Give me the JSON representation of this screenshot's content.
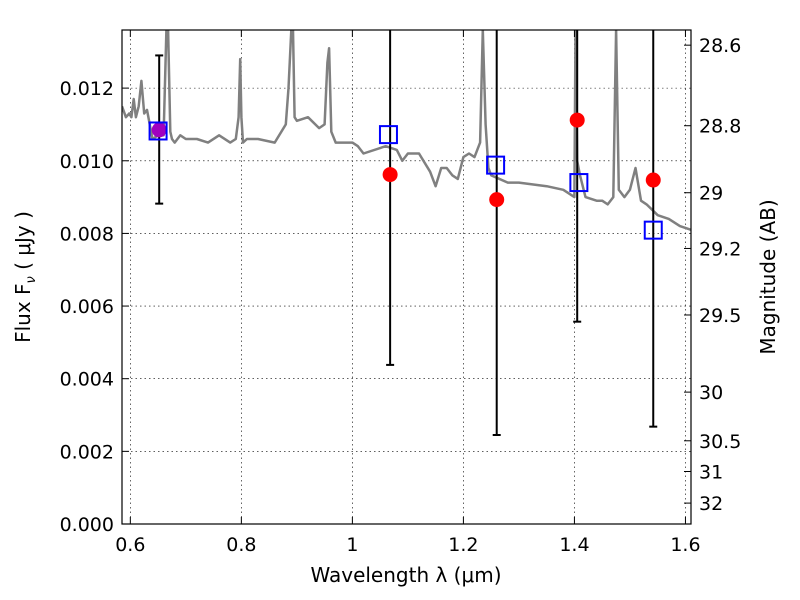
{
  "chart_data": {
    "type": "scatter",
    "title": "",
    "xlabel": "Wavelength  λ (μm)",
    "ylabel": "Flux  F",
    "ylabel_sub": "ν",
    "ylabel_unit": "  ( μJy )",
    "y2label": "Magnitude (AB)",
    "xlim": [
      0.585,
      1.61
    ],
    "ylim": [
      0.0,
      0.0136
    ],
    "grid": true,
    "x_ticks": [
      0.6,
      0.8,
      1.0,
      1.2,
      1.4,
      1.6
    ],
    "x_tick_labels": [
      "0.6",
      "0.8",
      "1",
      "1.2",
      "1.4",
      "1.6"
    ],
    "y_ticks": [
      0.0,
      0.002,
      0.004,
      0.006,
      0.008,
      0.01,
      0.012
    ],
    "y_tick_labels": [
      "0.000",
      "0.002",
      "0.004",
      "0.006",
      "0.008",
      "0.010",
      "0.012"
    ],
    "y2_ticks": [
      28.6,
      28.8,
      29,
      29.2,
      29.5,
      30,
      30.5,
      31,
      32
    ],
    "y2_tick_labels": [
      "28.6",
      "28.8",
      "29",
      "29.2",
      "29.5",
      "30",
      "30.5",
      "31",
      "32"
    ],
    "colors": {
      "spectrum": "#808080",
      "observed": "#ff0000",
      "model": "#0000ff",
      "overlap": "#a000c0",
      "errorbar": "#000000"
    },
    "series": [
      {
        "kind": "spectrum-line",
        "x": [
          0.585,
          0.592,
          0.598,
          0.602,
          0.606,
          0.61,
          0.615,
          0.62,
          0.625,
          0.63,
          0.64,
          0.65,
          0.66,
          0.665,
          0.668,
          0.672,
          0.675,
          0.68,
          0.69,
          0.7,
          0.72,
          0.74,
          0.76,
          0.78,
          0.79,
          0.795,
          0.798,
          0.8,
          0.803,
          0.81,
          0.83,
          0.86,
          0.88,
          0.885,
          0.89,
          0.893,
          0.896,
          0.9,
          0.92,
          0.94,
          0.95,
          0.955,
          0.958,
          0.962,
          0.97,
          0.98,
          1.0,
          1.01,
          1.02,
          1.06,
          1.08,
          1.09,
          1.1,
          1.12,
          1.14,
          1.15,
          1.16,
          1.17,
          1.18,
          1.19,
          1.2,
          1.21,
          1.22,
          1.23,
          1.235,
          1.24,
          1.245,
          1.25,
          1.28,
          1.3,
          1.35,
          1.38,
          1.4,
          1.402,
          1.405,
          1.41,
          1.42,
          1.44,
          1.45,
          1.46,
          1.47,
          1.475,
          1.48,
          1.49,
          1.5,
          1.51,
          1.52,
          1.53,
          1.55,
          1.57,
          1.59,
          1.61
        ],
        "y": [
          0.0115,
          0.0112,
          0.0113,
          0.0112,
          0.0117,
          0.0112,
          0.0115,
          0.0122,
          0.0113,
          0.0114,
          0.0106,
          0.0107,
          0.0107,
          0.0136,
          0.0136,
          0.0108,
          0.0106,
          0.0105,
          0.0107,
          0.0106,
          0.0106,
          0.0105,
          0.0107,
          0.0105,
          0.0106,
          0.0112,
          0.0128,
          0.0112,
          0.0105,
          0.0106,
          0.0106,
          0.0105,
          0.011,
          0.012,
          0.0136,
          0.0136,
          0.0112,
          0.0111,
          0.0112,
          0.0109,
          0.011,
          0.0127,
          0.0131,
          0.0108,
          0.0105,
          0.0105,
          0.0105,
          0.0104,
          0.0102,
          0.0104,
          0.0103,
          0.01,
          0.0102,
          0.0102,
          0.0097,
          0.0093,
          0.0098,
          0.0098,
          0.0096,
          0.0095,
          0.0101,
          0.0102,
          0.0101,
          0.0105,
          0.0136,
          0.011,
          0.0098,
          0.0096,
          0.0094,
          0.0094,
          0.0093,
          0.0092,
          0.009,
          0.0136,
          0.01,
          0.0096,
          0.009,
          0.0089,
          0.0089,
          0.0088,
          0.009,
          0.0136,
          0.0092,
          0.009,
          0.0092,
          0.0098,
          0.0089,
          0.0088,
          0.0085,
          0.0084,
          0.0082,
          0.0081
        ]
      },
      {
        "kind": "observed-points",
        "marker": "circle",
        "x": [
          0.652,
          1.068,
          1.26,
          1.405,
          1.542
        ],
        "y": [
          0.01085,
          0.00962,
          0.00893,
          0.01112,
          0.00947
        ],
        "yerr_low": [
          0.00882,
          0.00438,
          0.00245,
          0.00557,
          0.00268
        ],
        "yerr_high": [
          0.0129,
          0.0136,
          0.0136,
          0.0136,
          0.0136
        ],
        "overlap_color_index": [
          0
        ]
      },
      {
        "kind": "model-points",
        "marker": "square",
        "x": [
          0.65,
          1.065,
          1.258,
          1.408,
          1.542
        ],
        "y": [
          0.01082,
          0.01072,
          0.00988,
          0.0094,
          0.00809
        ]
      }
    ]
  }
}
